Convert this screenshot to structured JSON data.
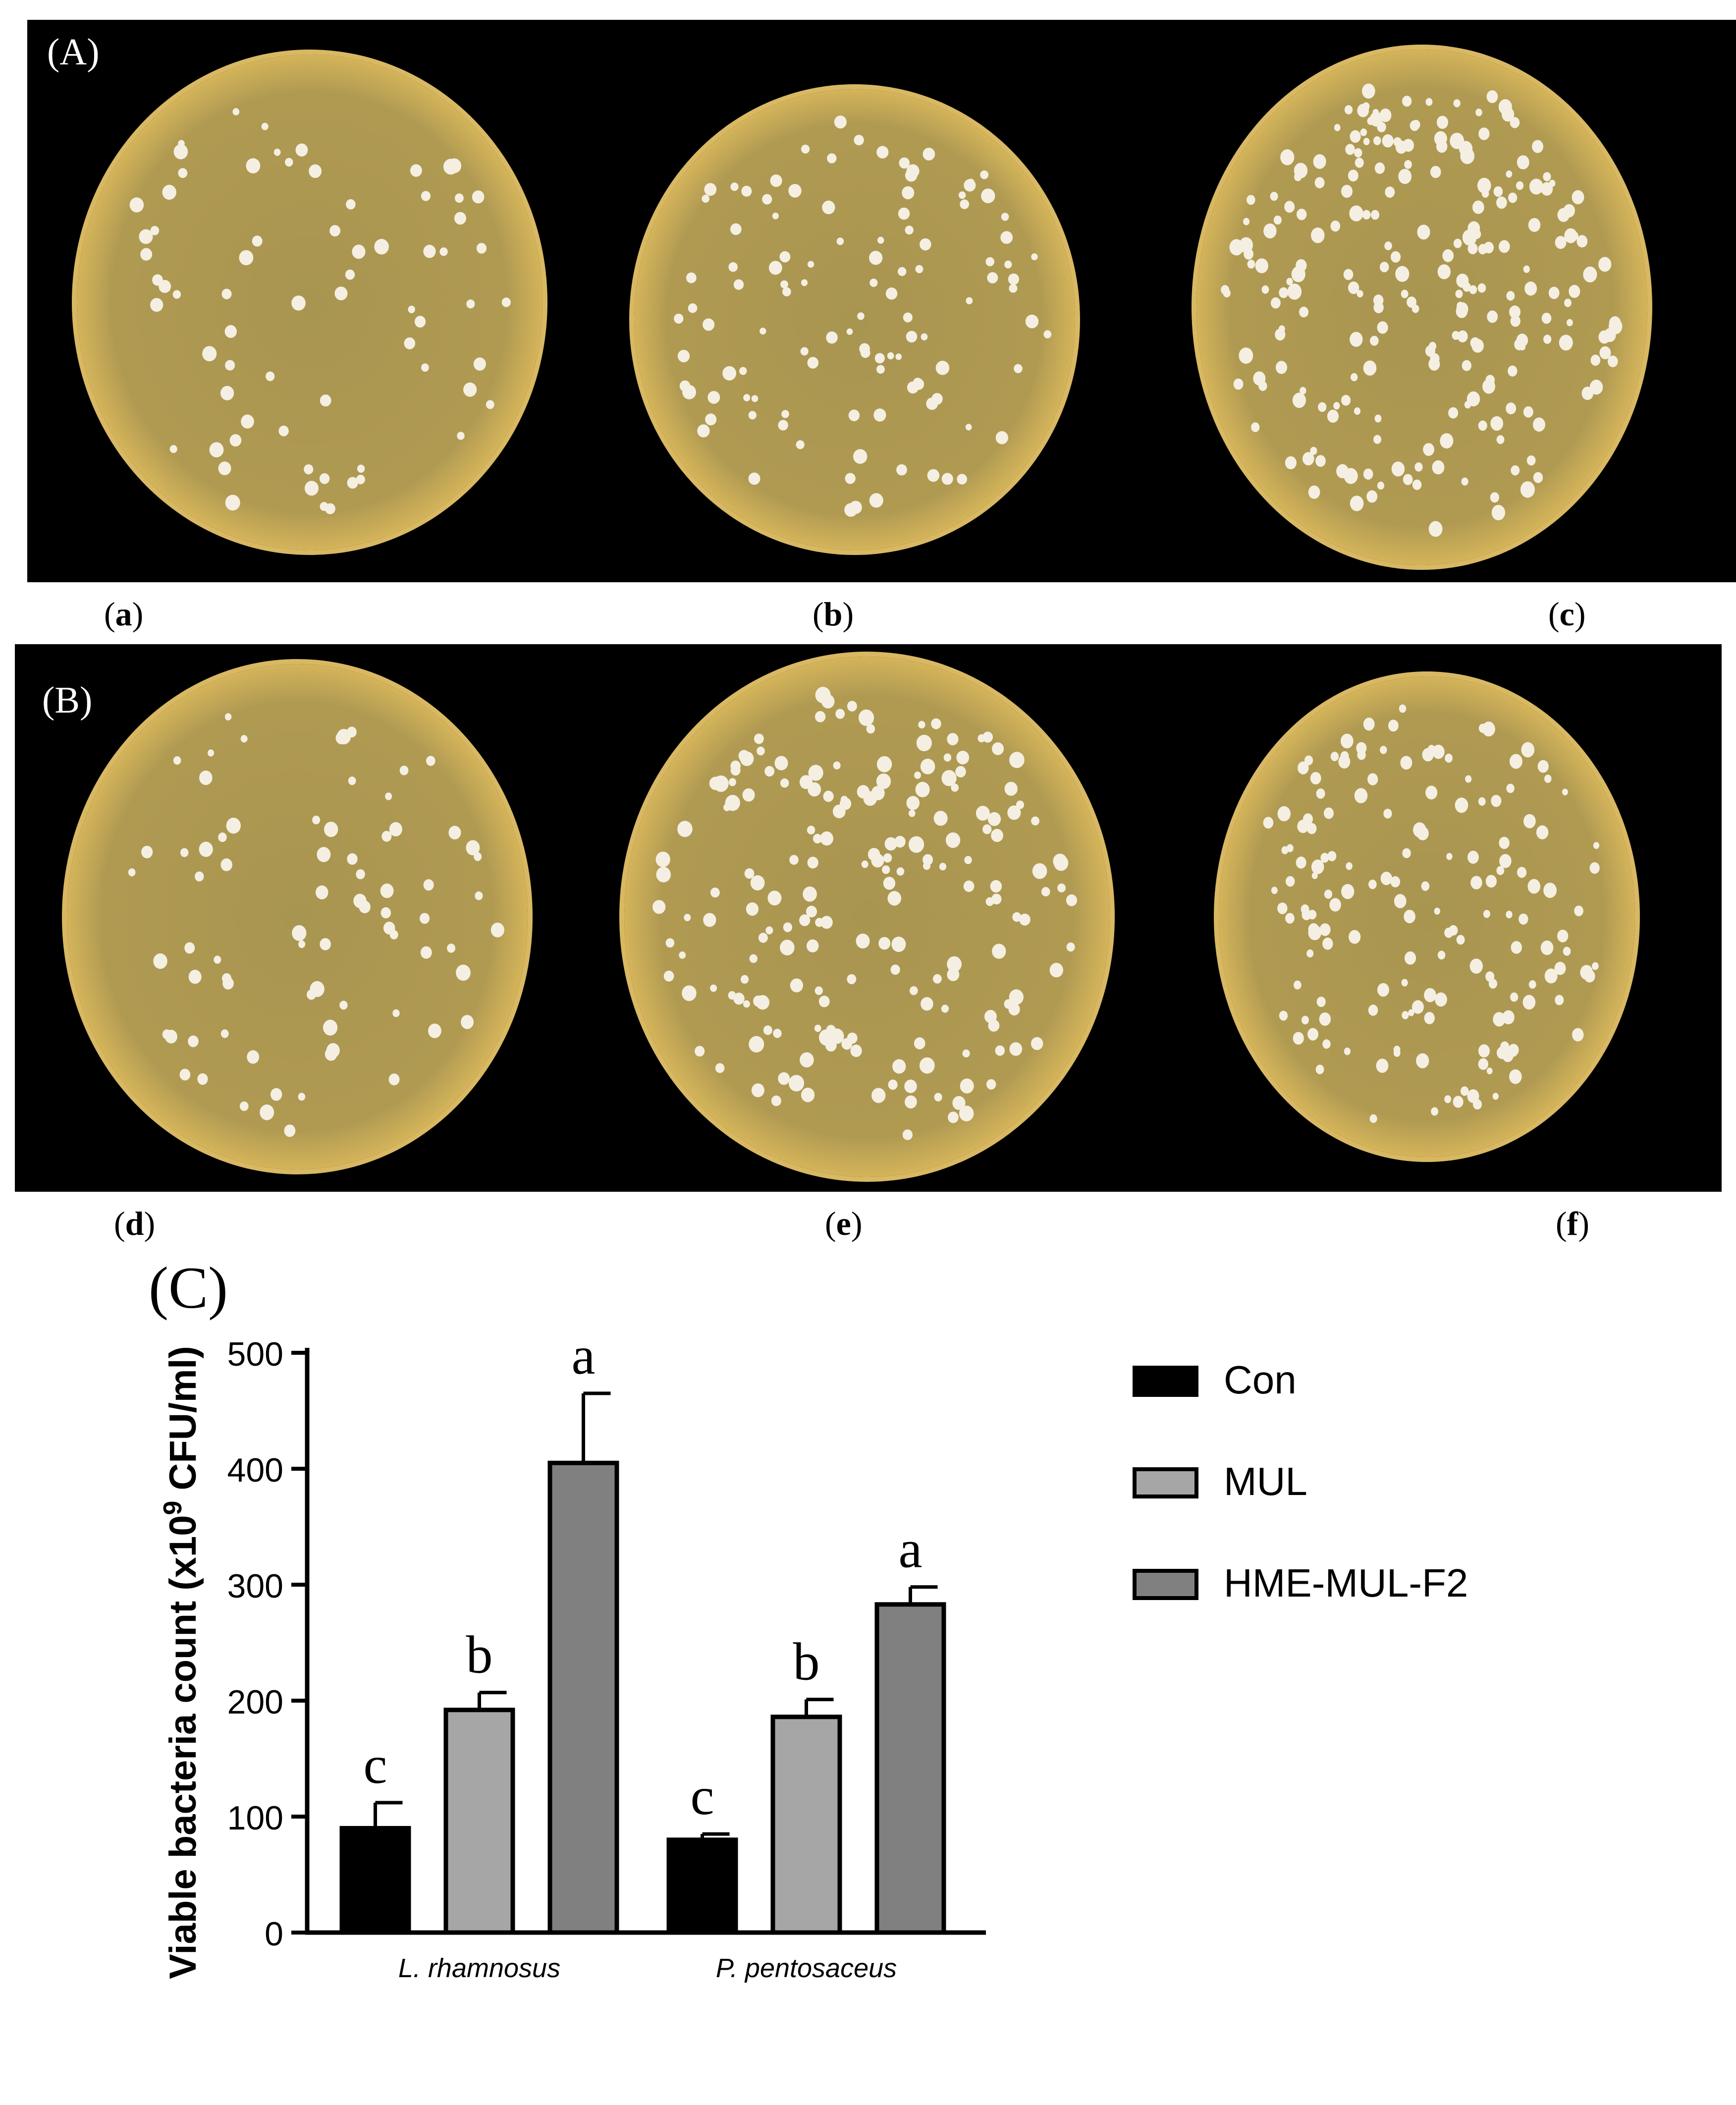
{
  "panels": {
    "A": {
      "label": "(A)"
    },
    "B": {
      "label": "(B)"
    },
    "C": {
      "label": "(C)"
    }
  },
  "sublabels": {
    "a": "a",
    "b": "b",
    "c": "c",
    "d": "d",
    "e": "e",
    "f": "f"
  },
  "colors": {
    "agar_center": "#a89550",
    "agar_edge": "#d4b45a",
    "colony": "#f4efe2",
    "con": "#000000",
    "mul": "#a6a6a6",
    "hme": "#808080"
  },
  "plates": [
    {
      "id": "a",
      "colonies": 70
    },
    {
      "id": "b",
      "colonies": 110
    },
    {
      "id": "c",
      "colonies": 230
    },
    {
      "id": "d",
      "colonies": 75
    },
    {
      "id": "e",
      "colonies": 190
    },
    {
      "id": "f",
      "colonies": 160
    }
  ],
  "chart_data": {
    "type": "bar",
    "title": "",
    "xlabel": "",
    "ylabel": "Viable bacteria count (x10",
    "ylabel_sup": "9",
    "ylabel_tail": " CFU/ml)",
    "categories": [
      "L. rhamnosus",
      "P. pentosaceus"
    ],
    "ylim": [
      0,
      500
    ],
    "yticks": [
      "0",
      "100",
      "200",
      "300",
      "400",
      "500"
    ],
    "legend_position": "right",
    "series": [
      {
        "name": "Con",
        "values": [
          90,
          80
        ],
        "errors": [
          22,
          5
        ],
        "letters": [
          "c",
          "c"
        ],
        "color": "#000000"
      },
      {
        "name": "MUL",
        "values": [
          192,
          186
        ],
        "errors": [
          15,
          15
        ],
        "letters": [
          "b",
          "b"
        ],
        "color": "#a6a6a6"
      },
      {
        "name": "HME-MUL-F2",
        "values": [
          405,
          283
        ],
        "errors": [
          60,
          15
        ],
        "letters": [
          "a",
          "a"
        ],
        "color": "#808080"
      }
    ]
  }
}
